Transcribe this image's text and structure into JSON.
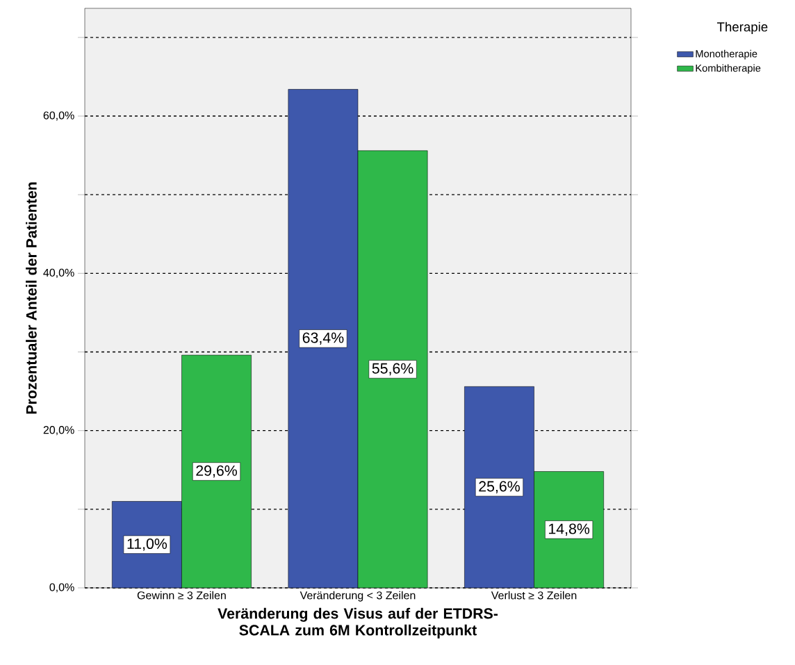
{
  "chart_data": {
    "type": "bar",
    "xlabel": "Veränderung des Visus auf der ETDRS-SCALA zum 6M Kontrollzeitpunkt",
    "ylabel": "Prozentualer Anteil der Patienten",
    "legend_title": "Therapie",
    "categories": [
      "Gewinn ≥ 3 Zeilen",
      "Veränderung < 3 Zeilen",
      "Verlust ≥ 3 Zeilen"
    ],
    "series": [
      {
        "name": "Monotherapie",
        "color": "#3e58ac",
        "values": [
          11.0,
          63.4,
          25.6
        ],
        "value_labels": [
          "11,0%",
          "63,4%",
          "25,6%"
        ]
      },
      {
        "name": "Kombitherapie",
        "color": "#2fb84a",
        "values": [
          29.6,
          55.6,
          14.8
        ],
        "value_labels": [
          "29,6%",
          "55,6%",
          "14,8%"
        ]
      }
    ],
    "ylim": [
      0,
      73.7
    ],
    "yticks": [
      {
        "value": 0,
        "label": "0,0%"
      },
      {
        "value": 10,
        "label": null
      },
      {
        "value": 20,
        "label": "20,0%"
      },
      {
        "value": 30,
        "label": null
      },
      {
        "value": 40,
        "label": "40,0%"
      },
      {
        "value": 50,
        "label": null
      },
      {
        "value": 60,
        "label": "60,0%"
      },
      {
        "value": 70,
        "label": null
      }
    ],
    "grid": "y",
    "legend": "top right"
  }
}
